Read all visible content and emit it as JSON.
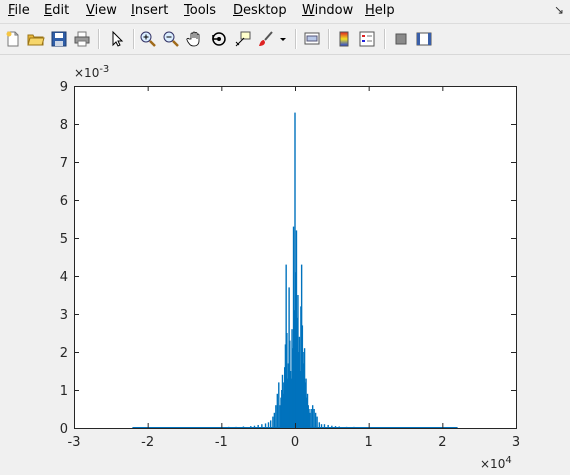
{
  "menu": {
    "items": [
      {
        "key": "F",
        "rest": "ile",
        "name": "menu-file"
      },
      {
        "key": "E",
        "rest": "dit",
        "name": "menu-edit"
      },
      {
        "key": "V",
        "rest": "iew",
        "name": "menu-view"
      },
      {
        "key": "I",
        "rest": "nsert",
        "name": "menu-insert"
      },
      {
        "key": "T",
        "rest": "ools",
        "name": "menu-tools"
      },
      {
        "key": "D",
        "rest": "esktop",
        "name": "menu-desktop"
      },
      {
        "key": "W",
        "rest": "indow",
        "name": "menu-window"
      },
      {
        "key": "H",
        "rest": "elp",
        "name": "menu-help"
      }
    ]
  },
  "toolbar": {
    "icons": [
      "new-figure-icon",
      "open-file-icon",
      "save-icon",
      "print-icon",
      "edit-plot-arrow-icon",
      "zoom-in-icon",
      "zoom-out-icon",
      "pan-hand-icon",
      "rotate-3d-icon",
      "data-cursor-icon",
      "brush-icon",
      "brush-dropdown-icon",
      "link-plot-icon",
      "colorbar-icon",
      "legend-icon",
      "hide-plot-tools-icon",
      "show-plot-tools-icon"
    ]
  },
  "chart_data": {
    "type": "bar",
    "title": "",
    "xlabel": "",
    "ylabel": "",
    "xlim": [
      -30000,
      30000
    ],
    "ylim": [
      0,
      0.009
    ],
    "x_exponent_label": "×10",
    "x_exponent_power": "4",
    "y_exponent_label": "×10",
    "y_exponent_power": "-3",
    "x_ticks": [
      "-3",
      "-2",
      "-1",
      "0",
      "1",
      "2",
      "3"
    ],
    "y_ticks": [
      "0",
      "1",
      "2",
      "3",
      "4",
      "5",
      "6",
      "7",
      "8",
      "9"
    ],
    "bar_color": "#0072bd",
    "x": [
      -22000,
      -20000,
      -18000,
      -16000,
      -14000,
      -12000,
      -10000,
      -9000,
      -8000,
      -7000,
      -6000,
      -5500,
      -5000,
      -4500,
      -4000,
      -3600,
      -3300,
      -3000,
      -2800,
      -2600,
      -2400,
      -2200,
      -2000,
      -1900,
      -1800,
      -1700,
      -1600,
      -1500,
      -1400,
      -1300,
      -1200,
      -1100,
      -1000,
      -900,
      -800,
      -700,
      -600,
      -500,
      -400,
      -300,
      -200,
      -100,
      0,
      100,
      200,
      300,
      400,
      500,
      600,
      700,
      800,
      900,
      1000,
      1100,
      1200,
      1300,
      1400,
      1500,
      1600,
      1700,
      1800,
      1900,
      2000,
      2200,
      2400,
      2600,
      2800,
      3000,
      3300,
      3600,
      4000,
      4500,
      5000,
      5500,
      6000,
      7000,
      8000,
      9000,
      10000,
      12000,
      14000,
      16000,
      18000,
      20000,
      22000
    ],
    "y": [
      2e-05,
      2e-05,
      2e-05,
      2e-05,
      2e-05,
      2e-05,
      2e-05,
      3e-05,
      3e-05,
      4e-05,
      5e-05,
      6e-05,
      8e-05,
      0.0001,
      0.00012,
      0.00015,
      0.0002,
      0.0003,
      0.0004,
      0.0006,
      0.0009,
      0.0012,
      0.0006,
      0.0008,
      0.001,
      0.0014,
      0.0012,
      0.0009,
      0.0016,
      0.0022,
      0.0043,
      0.0025,
      0.0013,
      0.0017,
      0.0037,
      0.0023,
      0.0015,
      0.0013,
      0.0026,
      0.0021,
      0.0053,
      0.0031,
      0.0083,
      0.0041,
      0.0052,
      0.0029,
      0.0035,
      0.002,
      0.0024,
      0.0015,
      0.0032,
      0.0043,
      0.0027,
      0.002,
      0.0017,
      0.0021,
      0.0012,
      0.0013,
      0.0008,
      0.0009,
      0.0006,
      0.0005,
      0.0004,
      0.0005,
      0.0006,
      0.0005,
      0.0004,
      0.0003,
      0.00015,
      0.0001,
      0.0001,
      8e-05,
      6e-05,
      5e-05,
      4e-05,
      3e-05,
      3e-05,
      2e-05,
      2e-05,
      2e-05,
      2e-05,
      2e-05,
      2e-05,
      2e-05,
      2e-05
    ]
  }
}
